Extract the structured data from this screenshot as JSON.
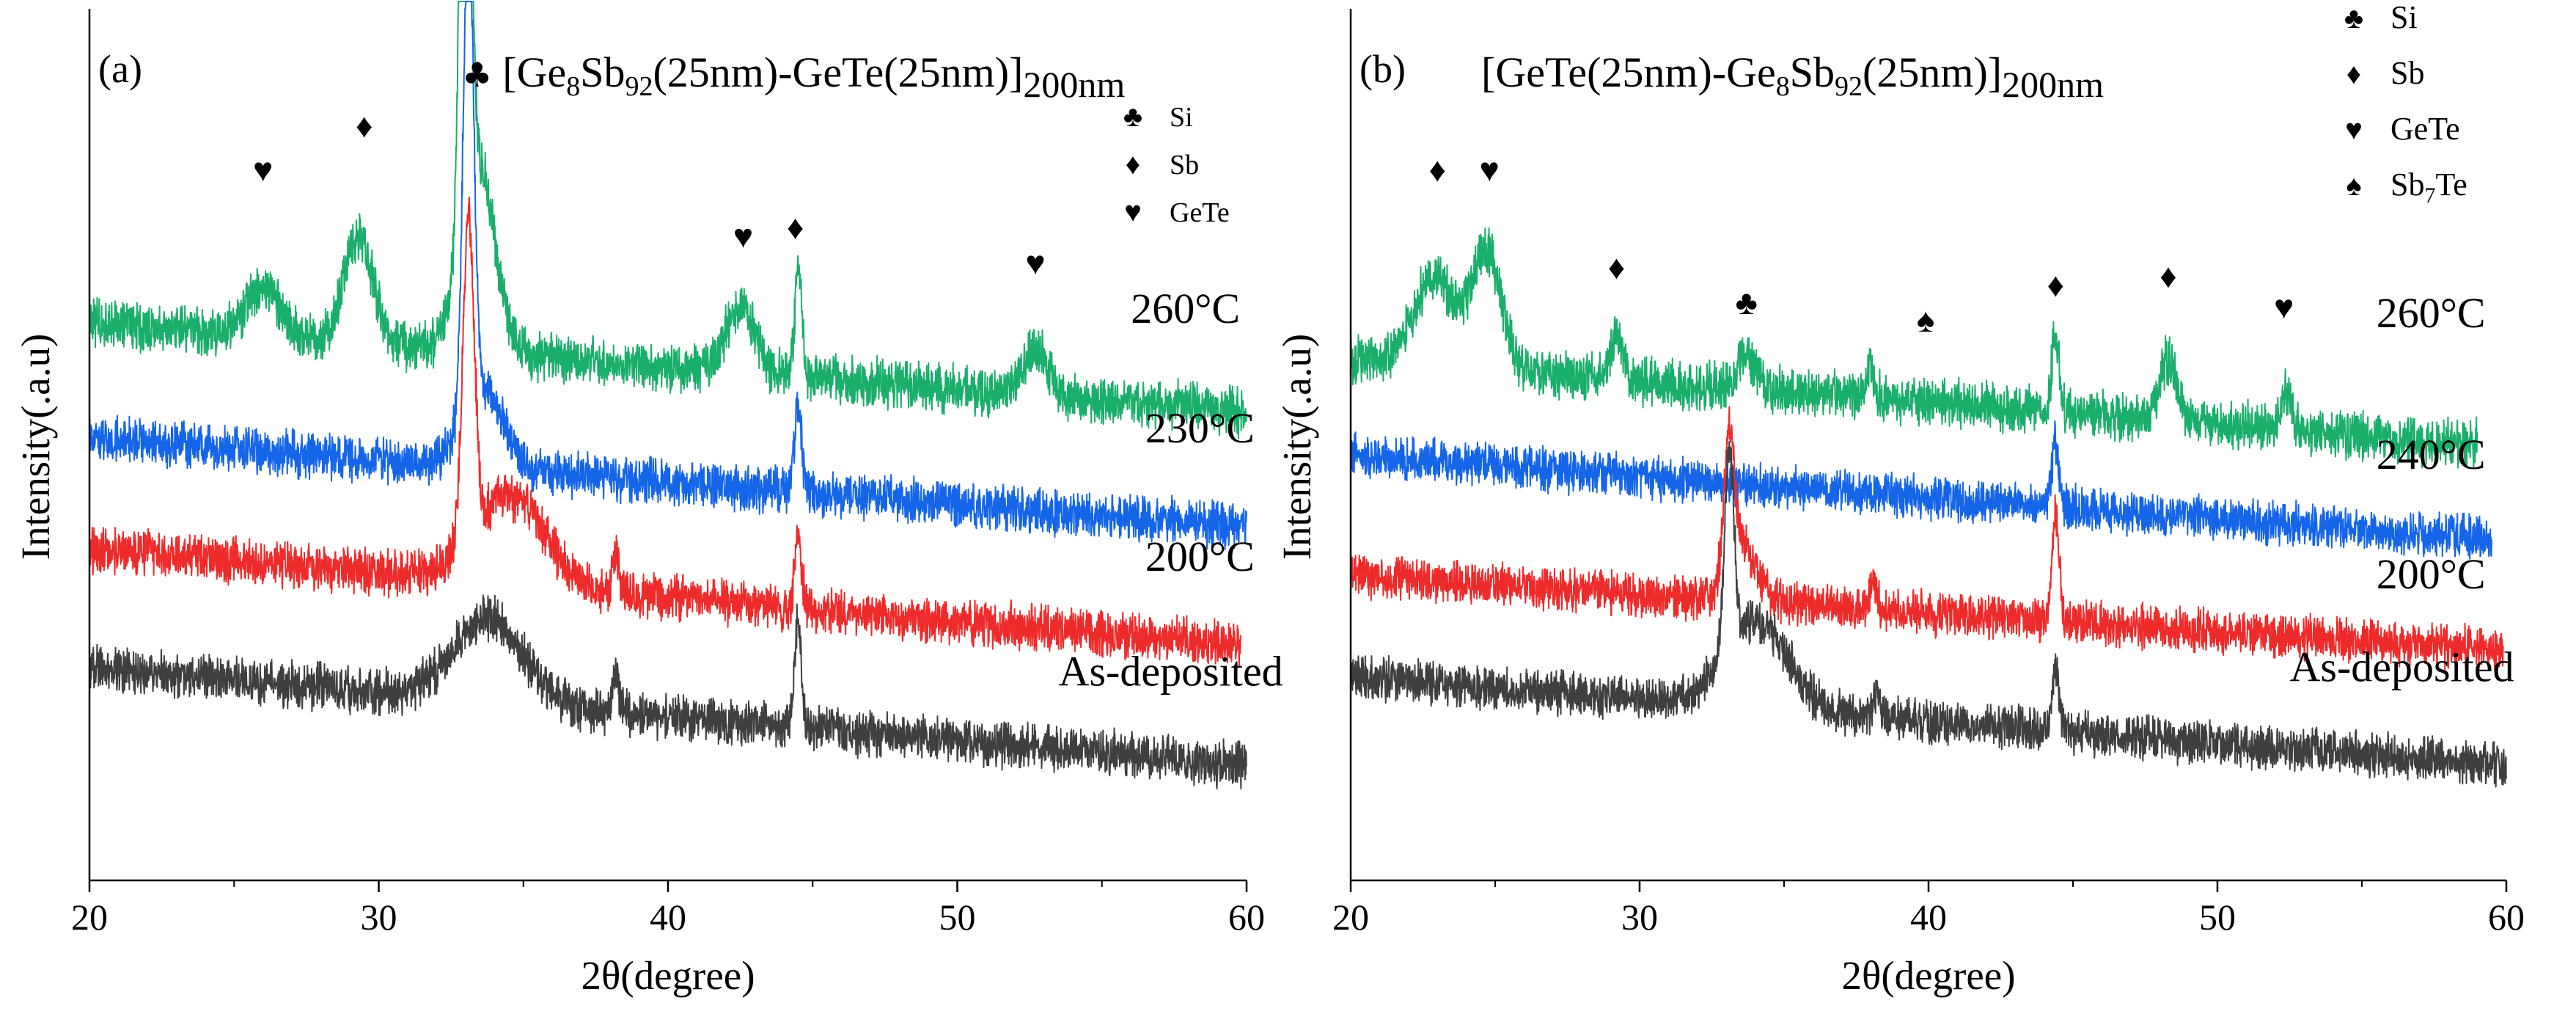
{
  "colors": {
    "260": "#1aae6b",
    "mid": "#1565e8",
    "200": "#ee2b2b",
    "as": "#3f3f3f",
    "axis": "#000000"
  },
  "chart_data": [
    {
      "type": "line",
      "panel_label": "(a)",
      "title_parts": {
        "pre": "[Ge",
        "s1": "8",
        "mid1": "Sb",
        "s2": "92",
        "mid2": "(25nm)-GeTe(25nm)]",
        "s3": "200nm"
      },
      "title_marker": "♣",
      "xlabel": "2θ(degree)",
      "ylabel": "Intensity(.a.u)",
      "xlim": [
        20,
        60
      ],
      "x_ticks": [
        "20",
        "30",
        "40",
        "50",
        "60"
      ],
      "y_ticks": false,
      "legend": [
        {
          "symbol": "♣",
          "name": "Si"
        },
        {
          "symbol": "♦",
          "name": "Sb"
        },
        {
          "symbol": "♥",
          "name": "GeTe"
        }
      ],
      "legend_position": "top-right",
      "series": [
        {
          "name": "260°C",
          "color_key": "260",
          "baseline": 4.0,
          "slope": 1.0,
          "noise": 0.42,
          "xmax": 60,
          "peaks": [
            {
              "x": 26.0,
              "h": 0.55,
              "w": 0.6
            },
            {
              "x": 29.3,
              "h": 1.2,
              "w": 0.5
            },
            {
              "x": 33.0,
              "h": 9.0,
              "w": 0.16
            },
            {
              "x": 33.4,
              "h": 2.2,
              "w": 0.6
            },
            {
              "x": 42.5,
              "h": 0.75,
              "w": 0.5
            },
            {
              "x": 44.5,
              "h": 1.2,
              "w": 0.12
            },
            {
              "x": 52.7,
              "h": 0.55,
              "w": 0.4
            }
          ]
        },
        {
          "name": "230°C",
          "color_key": "mid",
          "baseline": 2.7,
          "slope": 1.0,
          "noise": 0.4,
          "xmax": 60,
          "peaks": [
            {
              "x": 33.1,
              "h": 5.5,
              "w": 0.18
            },
            {
              "x": 33.6,
              "h": 0.9,
              "w": 0.7
            },
            {
              "x": 44.5,
              "h": 1.0,
              "w": 0.12
            }
          ]
        },
        {
          "name": "200°C",
          "color_key": "200",
          "baseline": 1.35,
          "slope": 1.1,
          "noise": 0.4,
          "xmax": 59.8,
          "peaks": [
            {
              "x": 33.1,
              "h": 3.6,
              "w": 0.2
            },
            {
              "x": 34.5,
              "h": 1.0,
              "w": 1.2
            },
            {
              "x": 38.2,
              "h": 0.4,
              "w": 0.12
            },
            {
              "x": 44.5,
              "h": 0.8,
              "w": 0.12
            }
          ]
        },
        {
          "name": "As-deposited",
          "color_key": "as",
          "baseline": 0.0,
          "slope": 1.1,
          "noise": 0.4,
          "xmax": 60,
          "peaks": [
            {
              "x": 33.8,
              "h": 0.95,
              "w": 1.2
            },
            {
              "x": 38.2,
              "h": 0.4,
              "w": 0.12
            },
            {
              "x": 44.5,
              "h": 1.2,
              "w": 0.12
            }
          ]
        }
      ],
      "peak_markers": [
        {
          "symbol": "♥",
          "x": 26.0,
          "y": 6.6
        },
        {
          "symbol": "♦",
          "x": 29.5,
          "y": 7.1
        },
        {
          "symbol": "♥",
          "x": 42.6,
          "y": 5.85
        },
        {
          "symbol": "♦",
          "x": 44.4,
          "y": 5.95
        },
        {
          "symbol": "♥",
          "x": 52.7,
          "y": 5.55
        }
      ],
      "series_labels": [
        {
          "text": "260°C",
          "x": 56.0,
          "y": 5.0
        },
        {
          "text": "230°C",
          "x": 56.5,
          "y": 3.65
        },
        {
          "text": "200°C",
          "x": 56.5,
          "y": 2.2
        },
        {
          "text": "As-deposited",
          "x": 53.5,
          "y": 0.9
        }
      ]
    },
    {
      "type": "line",
      "panel_label": "(b)",
      "title_parts": {
        "pre": "[GeTe(25nm)-Ge",
        "s1": "8",
        "mid1": "Sb",
        "s2": "92",
        "mid2": "(25nm)]",
        "s3": "200nm"
      },
      "title_marker": "",
      "xlabel": "2θ(degree)",
      "ylabel": "Intensity(.a.u)",
      "xlim": [
        20,
        60
      ],
      "x_ticks": [
        "20",
        "30",
        "40",
        "50",
        "60"
      ],
      "y_ticks": false,
      "legend": [
        {
          "symbol": "♣",
          "name": "Si"
        },
        {
          "symbol": "♦",
          "name": "Sb"
        },
        {
          "symbol": "♥",
          "name": "GeTe"
        },
        {
          "symbol": "♠",
          "name": "Sb",
          "sub": "7",
          "tail": "Te"
        }
      ],
      "legend_position": "top-right",
      "series": [
        {
          "name": "260°C",
          "color_key": "260",
          "baseline": 3.6,
          "slope": 1.0,
          "noise": 0.42,
          "xmax": 59,
          "peaks": [
            {
              "x": 22.9,
              "h": 1.0,
              "w": 0.7
            },
            {
              "x": 24.7,
              "h": 1.3,
              "w": 0.5
            },
            {
              "x": 29.2,
              "h": 0.5,
              "w": 0.2
            },
            {
              "x": 33.7,
              "h": 0.4,
              "w": 0.3
            },
            {
              "x": 38.0,
              "h": 0.3,
              "w": 0.15
            },
            {
              "x": 44.4,
              "h": 0.9,
              "w": 0.13
            },
            {
              "x": 48.3,
              "h": 0.7,
              "w": 0.3
            },
            {
              "x": 52.4,
              "h": 0.4,
              "w": 0.2
            }
          ]
        },
        {
          "name": "240°C",
          "color_key": "mid",
          "baseline": 2.55,
          "slope": 0.95,
          "noise": 0.38,
          "xmax": 59.5,
          "peaks": [
            {
              "x": 44.4,
              "h": 0.75,
              "w": 0.12
            }
          ]
        },
        {
          "name": "200°C",
          "color_key": "200",
          "baseline": 1.3,
          "slope": 0.85,
          "noise": 0.38,
          "xmax": 59.9,
          "peaks": [
            {
              "x": 33.1,
              "h": 1.6,
              "w": 0.18
            },
            {
              "x": 33.6,
              "h": 0.6,
              "w": 0.5
            },
            {
              "x": 38.1,
              "h": 0.35,
              "w": 0.12
            },
            {
              "x": 44.4,
              "h": 1.2,
              "w": 0.12
            }
          ]
        },
        {
          "name": "As-deposited",
          "color_key": "as",
          "baseline": 0.0,
          "slope": 1.0,
          "noise": 0.38,
          "xmax": 60,
          "peaks": [
            {
              "x": 33.1,
              "h": 2.2,
              "w": 0.16
            },
            {
              "x": 34.0,
              "h": 1.0,
              "w": 1.1
            },
            {
              "x": 38.2,
              "h": 0.3,
              "w": 0.12
            },
            {
              "x": 44.4,
              "h": 0.7,
              "w": 0.12
            }
          ]
        }
      ],
      "peak_markers": [
        {
          "symbol": "♦",
          "x": 23.0,
          "y": 6.6
        },
        {
          "symbol": "♥",
          "x": 24.8,
          "y": 6.6
        },
        {
          "symbol": "♦",
          "x": 29.2,
          "y": 5.5
        },
        {
          "symbol": "♣",
          "x": 33.7,
          "y": 5.1
        },
        {
          "symbol": "♠",
          "x": 39.9,
          "y": 4.9
        },
        {
          "symbol": "♦",
          "x": 44.4,
          "y": 5.3
        },
        {
          "symbol": "♦",
          "x": 48.3,
          "y": 5.4
        },
        {
          "symbol": "♥",
          "x": 52.3,
          "y": 5.05
        }
      ],
      "series_labels": [
        {
          "text": "260°C",
          "x": 55.5,
          "y": 4.95
        },
        {
          "text": "240°C",
          "x": 55.5,
          "y": 3.35
        },
        {
          "text": "200°C",
          "x": 55.5,
          "y": 2.0
        },
        {
          "text": "As-deposited",
          "x": 52.5,
          "y": 0.95
        }
      ]
    }
  ]
}
